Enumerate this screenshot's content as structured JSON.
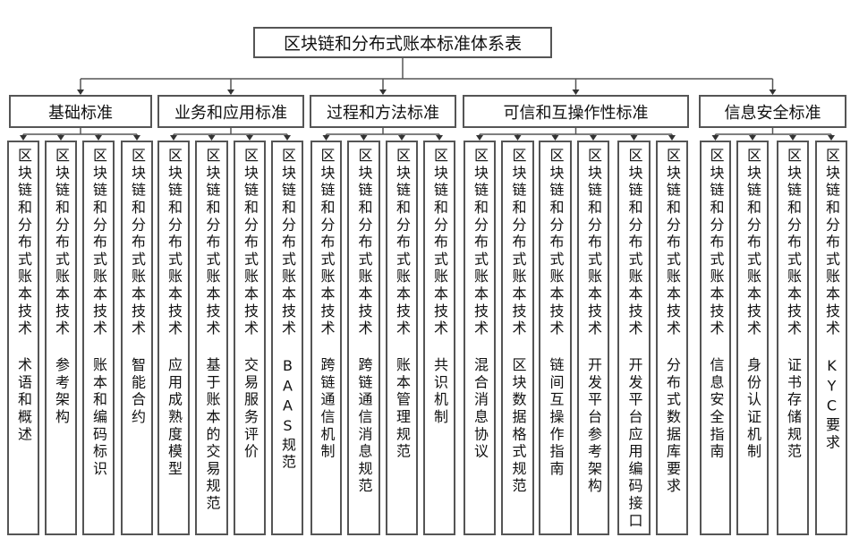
{
  "title": "区块链和分布式账本标准体系表",
  "leaf_prefix": "区块链和分布式账本技术",
  "groups": [
    {
      "label": "基础标准",
      "items": [
        "术语和概述",
        "参考架构",
        "账本和编码标识",
        "智能合约"
      ]
    },
    {
      "label": "业务和应用标准",
      "items": [
        "应用成熟度模型",
        "基于账本的交易规范",
        "交易服务评价",
        "BAAS规范"
      ]
    },
    {
      "label": "过程和方法标准",
      "items": [
        "跨链通信机制",
        "跨链通信消息规范",
        "账本管理规范",
        "共识机制"
      ]
    },
    {
      "label": "可信和互操作性标准",
      "items": [
        "混合消息协议",
        "区块数据格式规范",
        "链间互操作指南",
        "开发平台参考架构",
        "开发平台应用编码接口",
        "分布式数据库要求"
      ]
    },
    {
      "label": "信息安全标准",
      "items": [
        "信息安全指南",
        "身份认证机制",
        "证书存储规范",
        "KYC要求"
      ]
    }
  ]
}
